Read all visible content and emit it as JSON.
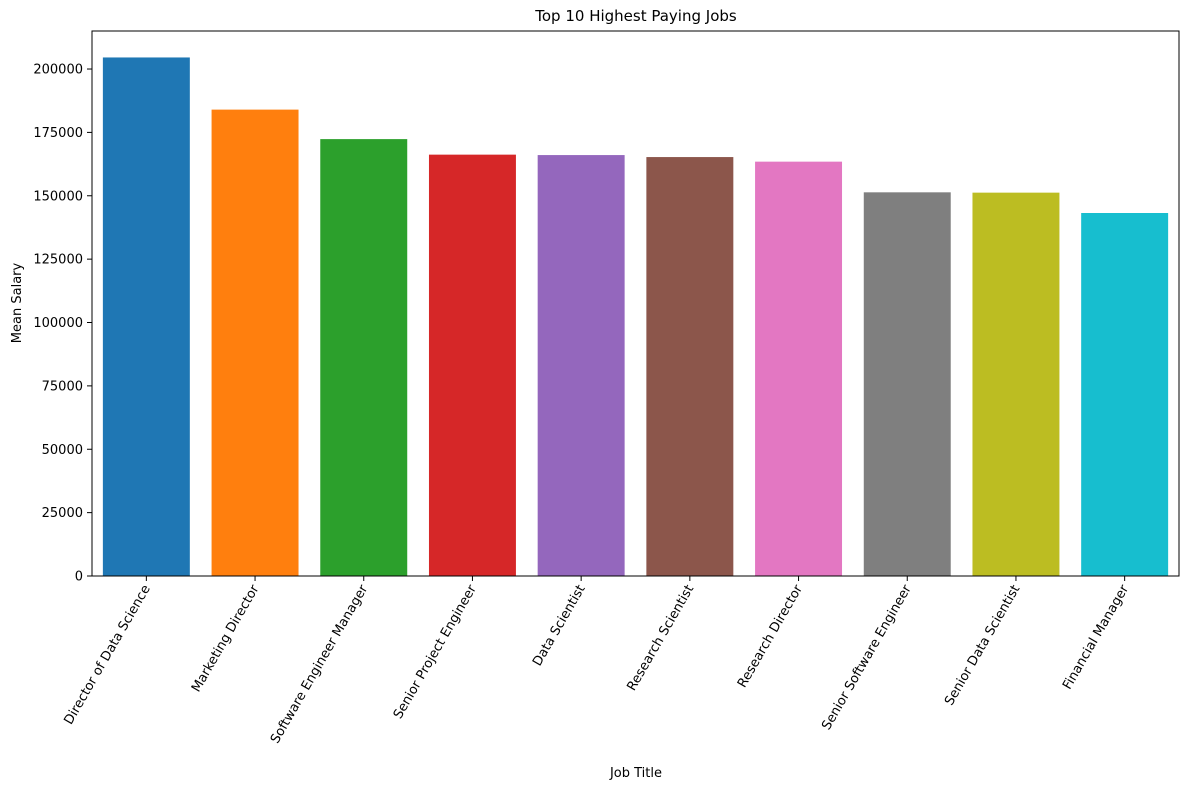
{
  "chart_data": {
    "type": "bar",
    "title": "Top 10 Highest Paying Jobs",
    "xlabel": "Job Title",
    "ylabel": "Mean Salary",
    "categories": [
      "Director of Data Science",
      "Marketing Director",
      "Software Engineer Manager",
      "Senior Project Engineer",
      "Data Scientist",
      "Research Scientist",
      "Research Director",
      "Senior Software Engineer",
      "Senior Data Scientist",
      "Financial Manager"
    ],
    "values": [
      204561,
      183985,
      172353,
      166222,
      166055,
      165268,
      163460,
      151361,
      151231,
      143200
    ],
    "colors": [
      "#1f77b4",
      "#ff7f0e",
      "#2ca02c",
      "#d62728",
      "#9467bd",
      "#8c564b",
      "#e377c2",
      "#7f7f7f",
      "#bcbd22",
      "#17becf"
    ],
    "yticks": [
      0,
      25000,
      50000,
      75000,
      100000,
      125000,
      150000,
      175000,
      200000
    ],
    "ylim": [
      0,
      215000
    ],
    "grid": false,
    "legend": "none"
  }
}
